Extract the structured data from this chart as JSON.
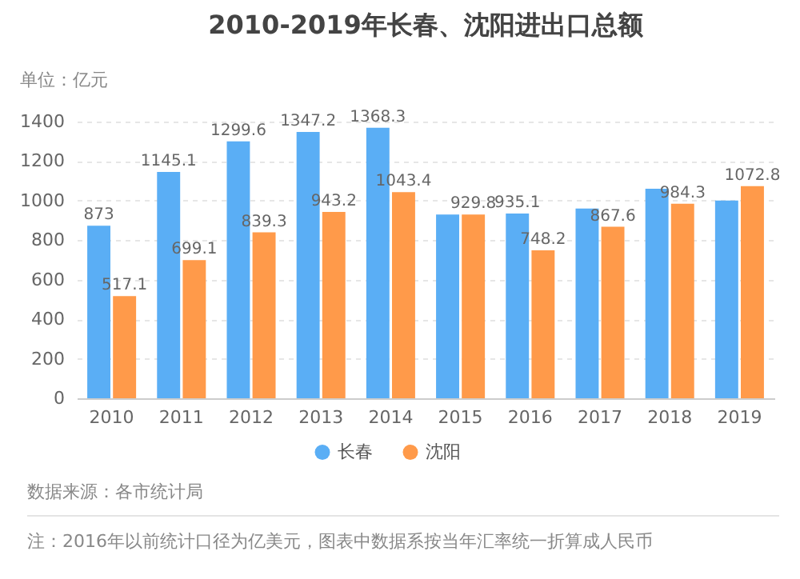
{
  "chart_data": {
    "type": "bar",
    "title": "2010-2019年长春、沈阳进出口总额",
    "ylabel": "单位：亿元",
    "categories": [
      "2010",
      "2011",
      "2012",
      "2013",
      "2014",
      "2015",
      "2016",
      "2017",
      "2018",
      "2019"
    ],
    "series": [
      {
        "name": "长春",
        "color": "#5aaef5",
        "values": [
          873,
          1145.1,
          1299.6,
          1347.2,
          1368.3,
          930,
          935.1,
          960,
          1060,
          1000
        ],
        "value_labels": [
          "873",
          "1145.1",
          "1299.6",
          "1347.2",
          "1368.3",
          null,
          "935.1",
          null,
          null,
          null
        ]
      },
      {
        "name": "沈阳",
        "color": "#ff9a4a",
        "values": [
          517.1,
          699.1,
          839.3,
          943.2,
          1043.4,
          929.8,
          748.2,
          867.6,
          984.3,
          1072.8
        ],
        "value_labels": [
          "517.1",
          "699.1",
          "839.3",
          "943.2",
          "1043.4",
          "929.8",
          "748.2",
          "867.6",
          "984.3",
          "1072.8"
        ]
      }
    ],
    "ylim": [
      0,
      1400
    ],
    "yticks": [
      0,
      200,
      400,
      600,
      800,
      1000,
      1200,
      1400
    ],
    "grid": "y",
    "legend": "bottom",
    "annotations": [
      "数据来源：各市统计局",
      "注：2016年以前统计口径为亿美元，图表中数据系按当年汇率统一折算成人民币"
    ]
  }
}
